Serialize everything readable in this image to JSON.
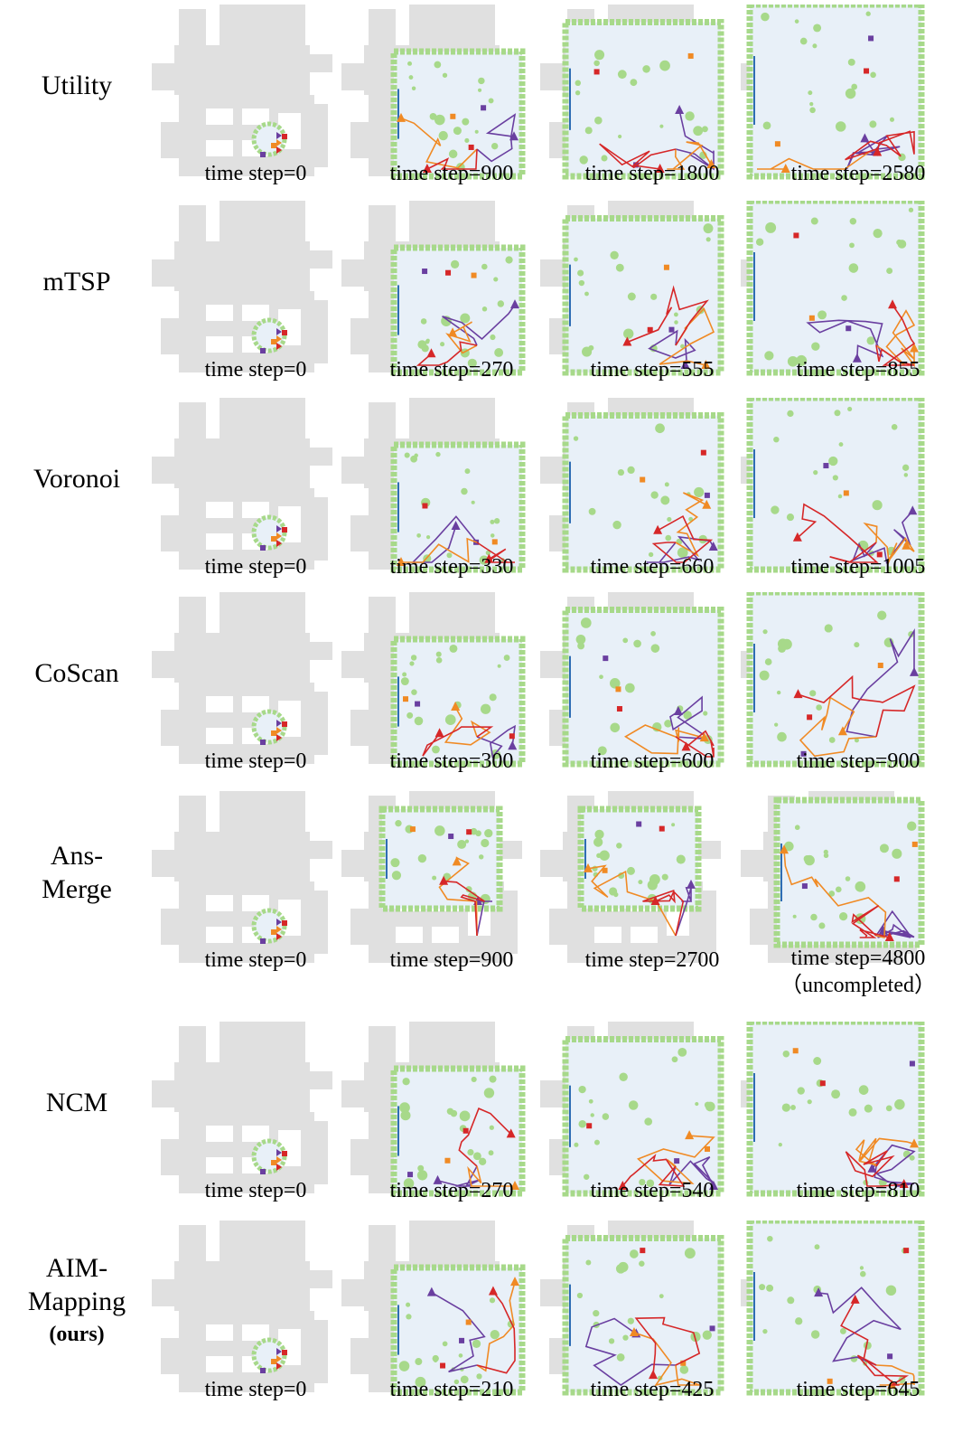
{
  "colors": {
    "ground_truth": "#e0e0e0",
    "explored_free": "#e8f0f8",
    "obstacle": "#a7d98a",
    "frontier": "#2e6db4",
    "agent_purple": "#6a3fa0",
    "agent_orange": "#f08a24",
    "agent_red": "#d62728"
  },
  "rows": [
    {
      "method_lines": [
        "Utility"
      ],
      "captions": [
        [
          "time step=0"
        ],
        [
          "time step=900"
        ],
        [
          "time step=1800"
        ],
        [
          "time step=2580"
        ]
      ]
    },
    {
      "method_lines": [
        "mTSP"
      ],
      "captions": [
        [
          "time step=0"
        ],
        [
          "time step=270"
        ],
        [
          "time step=555"
        ],
        [
          "time step=855"
        ]
      ]
    },
    {
      "method_lines": [
        "Voronoi"
      ],
      "captions": [
        [
          "time step=0"
        ],
        [
          "time step=330"
        ],
        [
          "time step=660"
        ],
        [
          "time step=1005"
        ]
      ]
    },
    {
      "method_lines": [
        "CoScan"
      ],
      "captions": [
        [
          "time step=0"
        ],
        [
          "time step=300"
        ],
        [
          "time step=600"
        ],
        [
          "time step=900"
        ]
      ]
    },
    {
      "method_lines": [
        "Ans-",
        "Merge"
      ],
      "captions": [
        [
          "time step=0"
        ],
        [
          "time step=900"
        ],
        [
          "time step=2700"
        ],
        [
          "time step=4800",
          "（uncompleted）"
        ]
      ]
    },
    {
      "method_lines": [
        "NCM"
      ],
      "captions": [
        [
          "time step=0"
        ],
        [
          "time step=270"
        ],
        [
          "time step=540"
        ],
        [
          "time step=810"
        ]
      ]
    },
    {
      "method_lines": [
        "AIM-",
        "Mapping",
        "(ours)"
      ],
      "captions": [
        [
          "time step=0"
        ],
        [
          "time step=210"
        ],
        [
          "time step=425"
        ],
        [
          "time step=645"
        ]
      ]
    }
  ]
}
